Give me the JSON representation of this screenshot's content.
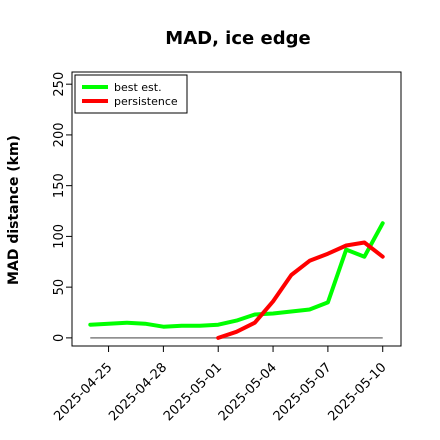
{
  "chart_data": {
    "type": "line",
    "title": "MAD, ice edge",
    "xlabel": "",
    "ylabel": "MAD distance (km)",
    "x": [
      "2025-04-24",
      "2025-04-25",
      "2025-04-26",
      "2025-04-27",
      "2025-04-28",
      "2025-04-29",
      "2025-04-30",
      "2025-05-01",
      "2025-05-02",
      "2025-05-03",
      "2025-05-04",
      "2025-05-05",
      "2025-05-06",
      "2025-05-07",
      "2025-05-08",
      "2025-05-09",
      "2025-05-10"
    ],
    "x_ticks": [
      "2025-04-25",
      "2025-04-28",
      "2025-05-01",
      "2025-05-04",
      "2025-05-07",
      "2025-05-10"
    ],
    "y_ticks": [
      0,
      50,
      100,
      150,
      200,
      250
    ],
    "ylim": [
      -8,
      262
    ],
    "xlim": [
      "2025-04-23",
      "2025-05-11"
    ],
    "grid": false,
    "legend_position": "top-left",
    "reference_line": 0,
    "colors": {
      "best_est": "#00ff00",
      "persistence": "#ff0000",
      "zero_line": "#808080"
    },
    "series": [
      {
        "name": "best est.",
        "color": "#00ff00",
        "x": [
          "2025-04-24",
          "2025-04-25",
          "2025-04-26",
          "2025-04-27",
          "2025-04-28",
          "2025-04-29",
          "2025-04-30",
          "2025-05-01",
          "2025-05-02",
          "2025-05-03",
          "2025-05-04",
          "2025-05-05",
          "2025-05-06",
          "2025-05-07",
          "2025-05-08",
          "2025-05-09",
          "2025-05-10"
        ],
        "values": [
          13,
          14,
          15,
          14,
          11,
          12,
          12,
          13,
          17,
          23,
          24,
          26,
          28,
          35,
          87,
          80,
          113
        ]
      },
      {
        "name": "persistence",
        "color": "#ff0000",
        "x": [
          "2025-05-01",
          "2025-05-02",
          "2025-05-03",
          "2025-05-04",
          "2025-05-05",
          "2025-05-06",
          "2025-05-07",
          "2025-05-08",
          "2025-05-09",
          "2025-05-10"
        ],
        "values": [
          0,
          6,
          15,
          36,
          62,
          76,
          83,
          91,
          94,
          80
        ]
      }
    ]
  }
}
